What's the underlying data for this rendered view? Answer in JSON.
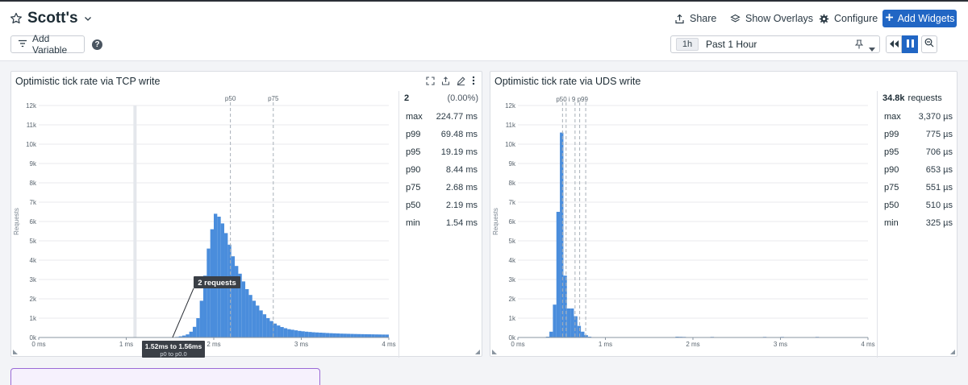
{
  "header": {
    "title": "Scott's",
    "share": "Share",
    "overlays": "Show Overlays",
    "configure": "Configure",
    "add_widgets": "Add Widgets",
    "add_variable": "Add Variable",
    "help": "?"
  },
  "time": {
    "badge": "1h",
    "label": "Past 1 Hour"
  },
  "widgets": [
    {
      "title": "Optimistic tick rate via TCP write",
      "stats_head": {
        "count": "2",
        "pct": "(0.00%)"
      },
      "stats": [
        {
          "label": "max",
          "value": "224.77 ms"
        },
        {
          "label": "p99",
          "value": "69.48 ms"
        },
        {
          "label": "p95",
          "value": "19.19 ms"
        },
        {
          "label": "p90",
          "value": "8.44 ms"
        },
        {
          "label": "p75",
          "value": "2.68 ms"
        },
        {
          "label": "p50",
          "value": "2.19 ms"
        },
        {
          "label": "min",
          "value": "1.54 ms"
        }
      ],
      "tooltip": {
        "requests": "2 requests",
        "range": "1.52ms to 1.56ms",
        "pct": "p0 to p0.0"
      }
    },
    {
      "title": "Optimistic tick rate via UDS write",
      "stats_head": {
        "count": "34.8k",
        "unit": "requests"
      },
      "stats": [
        {
          "label": "max",
          "value": "3,370 µs"
        },
        {
          "label": "p99",
          "value": "775 µs"
        },
        {
          "label": "p95",
          "value": "706 µs"
        },
        {
          "label": "p90",
          "value": "653 µs"
        },
        {
          "label": "p75",
          "value": "551 µs"
        },
        {
          "label": "p50",
          "value": "510 µs"
        },
        {
          "label": "min",
          "value": "325 µs"
        }
      ]
    }
  ],
  "chart_data": [
    {
      "type": "bar",
      "ylabel": "Requests",
      "xlim_ms": [
        0,
        4
      ],
      "ylim": [
        0,
        12000
      ],
      "x_ticks": [
        "0 ms",
        "1 ms",
        "2 ms",
        "3 ms",
        "4 ms"
      ],
      "y_ticks": [
        "0k",
        "1k",
        "2k",
        "3k",
        "4k",
        "5k",
        "6k",
        "7k",
        "8k",
        "9k",
        "10k",
        "11k",
        "12k"
      ],
      "markers": [
        {
          "label": "p50",
          "x_ms": 2.19
        },
        {
          "label": "p75",
          "x_ms": 2.68
        }
      ],
      "highlight_x_ms": 1.1,
      "bin_width_ms": 0.04,
      "bins": [
        {
          "x": 1.52,
          "v": 2
        },
        {
          "x": 1.56,
          "v": 30
        },
        {
          "x": 1.6,
          "v": 60
        },
        {
          "x": 1.64,
          "v": 100
        },
        {
          "x": 1.68,
          "v": 160
        },
        {
          "x": 1.72,
          "v": 300
        },
        {
          "x": 1.76,
          "v": 550
        },
        {
          "x": 1.8,
          "v": 1000
        },
        {
          "x": 1.84,
          "v": 1900
        },
        {
          "x": 1.88,
          "v": 3200
        },
        {
          "x": 1.92,
          "v": 4600
        },
        {
          "x": 1.96,
          "v": 5600
        },
        {
          "x": 2.0,
          "v": 6400
        },
        {
          "x": 2.04,
          "v": 6250
        },
        {
          "x": 2.08,
          "v": 5900
        },
        {
          "x": 2.12,
          "v": 5400
        },
        {
          "x": 2.16,
          "v": 4800
        },
        {
          "x": 2.2,
          "v": 4200
        },
        {
          "x": 2.24,
          "v": 3700
        },
        {
          "x": 2.28,
          "v": 3300
        },
        {
          "x": 2.32,
          "v": 2900
        },
        {
          "x": 2.36,
          "v": 2500
        },
        {
          "x": 2.4,
          "v": 2200
        },
        {
          "x": 2.44,
          "v": 1900
        },
        {
          "x": 2.48,
          "v": 1650
        },
        {
          "x": 2.52,
          "v": 1400
        },
        {
          "x": 2.56,
          "v": 1200
        },
        {
          "x": 2.6,
          "v": 1000
        },
        {
          "x": 2.64,
          "v": 850
        },
        {
          "x": 2.68,
          "v": 720
        },
        {
          "x": 2.72,
          "v": 620
        },
        {
          "x": 2.76,
          "v": 540
        },
        {
          "x": 2.8,
          "v": 480
        },
        {
          "x": 2.84,
          "v": 430
        },
        {
          "x": 2.88,
          "v": 400
        },
        {
          "x": 2.92,
          "v": 370
        },
        {
          "x": 2.96,
          "v": 340
        },
        {
          "x": 3.0,
          "v": 320
        },
        {
          "x": 3.04,
          "v": 300
        },
        {
          "x": 3.08,
          "v": 285
        },
        {
          "x": 3.12,
          "v": 270
        },
        {
          "x": 3.16,
          "v": 260
        },
        {
          "x": 3.2,
          "v": 250
        },
        {
          "x": 3.24,
          "v": 240
        },
        {
          "x": 3.28,
          "v": 230
        },
        {
          "x": 3.32,
          "v": 222
        },
        {
          "x": 3.36,
          "v": 215
        },
        {
          "x": 3.4,
          "v": 208
        },
        {
          "x": 3.44,
          "v": 200
        },
        {
          "x": 3.48,
          "v": 195
        },
        {
          "x": 3.52,
          "v": 190
        },
        {
          "x": 3.56,
          "v": 185
        },
        {
          "x": 3.6,
          "v": 180
        },
        {
          "x": 3.64,
          "v": 176
        },
        {
          "x": 3.68,
          "v": 172
        },
        {
          "x": 3.72,
          "v": 168
        },
        {
          "x": 3.76,
          "v": 165
        },
        {
          "x": 3.8,
          "v": 162
        },
        {
          "x": 3.84,
          "v": 158
        },
        {
          "x": 3.88,
          "v": 155
        },
        {
          "x": 3.92,
          "v": 152
        },
        {
          "x": 3.96,
          "v": 150
        }
      ]
    },
    {
      "type": "bar",
      "ylabel": "Requests",
      "xlim_ms": [
        0,
        4
      ],
      "ylim": [
        0,
        12000
      ],
      "x_ticks": [
        "0 ms",
        "1 ms",
        "2 ms",
        "3 ms",
        "4 ms"
      ],
      "y_ticks": [
        "0k",
        "1k",
        "2k",
        "3k",
        "4k",
        "5k",
        "6k",
        "7k",
        "8k",
        "9k",
        "10k",
        "11k",
        "12k"
      ],
      "markers": [
        {
          "label": "p50",
          "x_ms": 0.51
        },
        {
          "label": "p75",
          "x_ms": 0.551
        },
        {
          "label": "p90",
          "x_ms": 0.653
        },
        {
          "label": "p95",
          "x_ms": 0.706
        },
        {
          "label": "p99",
          "x_ms": 0.775
        }
      ],
      "marker_text": [
        "p50",
        "i",
        "9",
        "p99"
      ],
      "bin_width_ms": 0.04,
      "bins": [
        {
          "x": 0.32,
          "v": 40
        },
        {
          "x": 0.36,
          "v": 300
        },
        {
          "x": 0.4,
          "v": 1700
        },
        {
          "x": 0.44,
          "v": 6500
        },
        {
          "x": 0.48,
          "v": 10600
        },
        {
          "x": 0.52,
          "v": 3200
        },
        {
          "x": 0.56,
          "v": 1500
        },
        {
          "x": 0.6,
          "v": 1500
        },
        {
          "x": 0.64,
          "v": 1100
        },
        {
          "x": 0.68,
          "v": 600
        },
        {
          "x": 0.72,
          "v": 300
        },
        {
          "x": 0.76,
          "v": 120
        },
        {
          "x": 0.8,
          "v": 40
        },
        {
          "x": 0.84,
          "v": 15
        },
        {
          "x": 1.6,
          "v": 20
        },
        {
          "x": 1.64,
          "v": 15
        },
        {
          "x": 1.8,
          "v": 40
        },
        {
          "x": 1.84,
          "v": 35
        },
        {
          "x": 1.88,
          "v": 30
        },
        {
          "x": 2.2,
          "v": 30
        },
        {
          "x": 2.8,
          "v": 30
        },
        {
          "x": 3.0,
          "v": 30
        },
        {
          "x": 3.4,
          "v": 30
        }
      ]
    }
  ]
}
